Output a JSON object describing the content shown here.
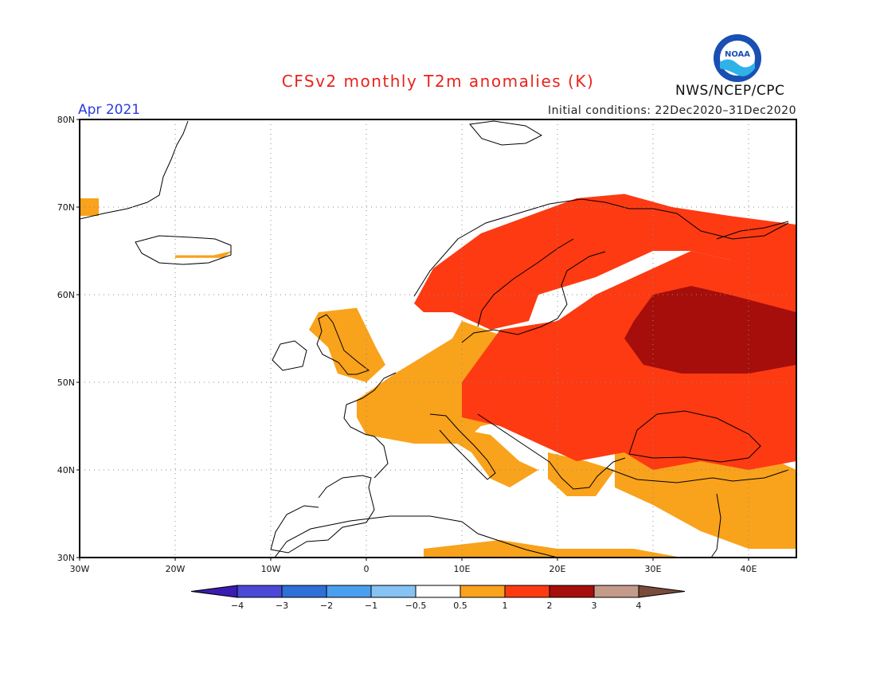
{
  "title": "CFSv2 monthly T2m anomalies (K)",
  "month": "Apr 2021",
  "initial_conditions": "Initial conditions: 22Dec2020–31Dec2020",
  "agency": "NWS/NCEP/CPC",
  "logo_text": "NOAA",
  "colors": {
    "title": "#e8241c",
    "month": "#2a3ce0",
    "bins": [
      "#3b1cb0",
      "#4b48d8",
      "#2f6fd8",
      "#4b9ff0",
      "#86c2f4",
      "#ffffff",
      "#f9a21b",
      "#fd3a12",
      "#a50e0a",
      "#c49a8a",
      "#7a4a3c"
    ]
  },
  "lon_ticks": [
    "30W",
    "20W",
    "10W",
    "0",
    "10E",
    "20E",
    "30E",
    "40E"
  ],
  "lat_ticks": [
    "30N",
    "40N",
    "50N",
    "60N",
    "70N",
    "80N"
  ],
  "colorbar_labels": [
    "−4",
    "−3",
    "−2",
    "−1",
    "−0.5",
    "0.5",
    "1",
    "2",
    "3",
    "4"
  ],
  "map_data": {
    "lon_range": [
      -30,
      45
    ],
    "lat_range": [
      30,
      80
    ],
    "anomaly_regions": [
      {
        "name": "western-europe",
        "level": "0.5-1",
        "polygon": [
          [
            -1,
            48
          ],
          [
            3,
            51
          ],
          [
            6,
            53
          ],
          [
            9,
            55
          ],
          [
            10,
            57
          ],
          [
            15,
            55
          ],
          [
            20,
            54
          ],
          [
            20,
            48
          ],
          [
            16,
            46
          ],
          [
            12,
            45
          ],
          [
            10,
            43
          ],
          [
            5,
            43
          ],
          [
            0,
            44
          ],
          [
            -1,
            46
          ]
        ]
      },
      {
        "name": "british-isles",
        "level": "0.5-1",
        "polygon": [
          [
            -5,
            58
          ],
          [
            -1,
            58.5
          ],
          [
            1,
            54
          ],
          [
            2,
            52
          ],
          [
            0,
            50
          ],
          [
            -3,
            51
          ],
          [
            -4,
            54
          ],
          [
            -6,
            56
          ]
        ]
      },
      {
        "name": "italy-balkans",
        "level": "0.5-1",
        "polygon": [
          [
            8,
            45
          ],
          [
            13,
            44
          ],
          [
            16,
            41
          ],
          [
            18,
            40
          ],
          [
            15,
            38
          ],
          [
            13,
            39
          ],
          [
            11,
            42
          ],
          [
            8,
            44
          ]
        ]
      },
      {
        "name": "greece",
        "level": "0.5-1",
        "polygon": [
          [
            19,
            42
          ],
          [
            23,
            41
          ],
          [
            26,
            40
          ],
          [
            24,
            37
          ],
          [
            21,
            37
          ],
          [
            19,
            39
          ]
        ]
      },
      {
        "name": "turkey-levant",
        "level": "0.5-1",
        "polygon": [
          [
            26,
            42
          ],
          [
            35,
            43
          ],
          [
            41,
            42
          ],
          [
            45,
            40
          ],
          [
            45,
            31
          ],
          [
            40,
            31
          ],
          [
            35,
            33
          ],
          [
            30,
            36
          ],
          [
            26,
            38
          ]
        ]
      },
      {
        "name": "north-africa-coast",
        "level": "0.5-1",
        "polygon": [
          [
            6,
            31
          ],
          [
            14,
            32
          ],
          [
            20,
            31
          ],
          [
            28,
            31
          ],
          [
            33,
            30
          ],
          [
            6,
            30
          ]
        ]
      },
      {
        "name": "scandinavia",
        "level": "1-2",
        "polygon": [
          [
            5,
            59
          ],
          [
            7,
            63
          ],
          [
            12,
            67
          ],
          [
            17,
            69
          ],
          [
            22,
            71
          ],
          [
            27,
            71.5
          ],
          [
            32,
            70
          ],
          [
            38,
            69
          ],
          [
            45,
            68
          ],
          [
            45,
            65
          ],
          [
            38,
            64
          ],
          [
            34,
            65
          ],
          [
            30,
            65
          ],
          [
            24,
            62
          ],
          [
            18,
            60
          ],
          [
            17,
            57
          ],
          [
            13,
            56
          ],
          [
            9,
            58
          ],
          [
            6,
            58
          ]
        ]
      },
      {
        "name": "russia-ukraine",
        "level": "1-2",
        "polygon": [
          [
            14,
            56
          ],
          [
            20,
            57
          ],
          [
            24,
            60
          ],
          [
            28,
            62
          ],
          [
            34,
            65
          ],
          [
            38,
            64
          ],
          [
            45,
            66
          ],
          [
            45,
            41
          ],
          [
            40,
            40
          ],
          [
            35,
            41
          ],
          [
            30,
            40
          ],
          [
            27,
            42
          ],
          [
            22,
            41
          ],
          [
            18,
            43
          ],
          [
            14,
            45
          ],
          [
            10,
            46
          ],
          [
            10,
            50
          ],
          [
            12,
            53
          ]
        ]
      },
      {
        "name": "western-russia-peak",
        "level": "2-3",
        "polygon": [
          [
            28,
            57
          ],
          [
            30,
            60
          ],
          [
            34,
            61
          ],
          [
            38,
            60
          ],
          [
            45,
            58
          ],
          [
            45,
            52
          ],
          [
            40,
            51
          ],
          [
            33,
            51
          ],
          [
            29,
            52
          ],
          [
            27,
            55
          ]
        ]
      },
      {
        "name": "iceland-anomaly",
        "level": "0.5-1",
        "polygon": [
          [
            -20,
            64.5
          ],
          [
            -16,
            64.5
          ],
          [
            -14,
            65
          ],
          [
            -15,
            64.2
          ],
          [
            -20,
            64.2
          ]
        ]
      },
      {
        "name": "greenland-edge",
        "level": "0.5-1",
        "polygon": [
          [
            -30,
            71
          ],
          [
            -28,
            71
          ],
          [
            -28,
            69
          ],
          [
            -30,
            69
          ]
        ]
      }
    ]
  }
}
